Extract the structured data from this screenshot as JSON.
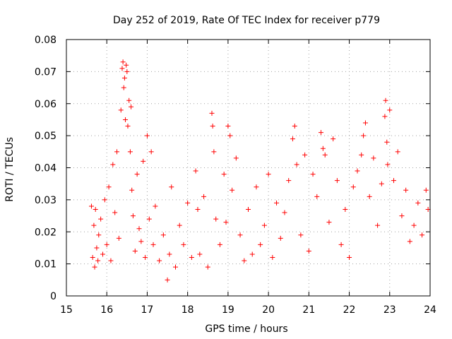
{
  "chart_data": {
    "type": "scatter",
    "title": "Day 252 of 2019, Rate Of TEC Index for receiver p779",
    "xlabel": "GPS time / hours",
    "ylabel": "ROTI / TECUs",
    "xlim": [
      15,
      24
    ],
    "ylim": [
      0,
      0.08
    ],
    "xticks": [
      "15",
      "16",
      "17",
      "18",
      "19",
      "20",
      "21",
      "22",
      "23",
      "24"
    ],
    "yticks": [
      "0",
      "0.01",
      "0.02",
      "0.03",
      "0.04",
      "0.05",
      "0.06",
      "0.07",
      "0.08"
    ],
    "grid": true,
    "marker": "plus",
    "color": "#ff0000",
    "series": [
      {
        "name": "ROTI",
        "x": [
          15.62,
          15.65,
          15.68,
          15.7,
          15.72,
          15.75,
          15.78,
          15.8,
          15.85,
          15.9,
          15.95,
          16.0,
          16.05,
          16.1,
          16.15,
          16.2,
          16.25,
          16.3,
          16.35,
          16.38,
          16.4,
          16.42,
          16.44,
          16.46,
          16.48,
          16.5,
          16.52,
          16.55,
          16.58,
          16.6,
          16.62,
          16.65,
          16.7,
          16.75,
          16.8,
          16.85,
          16.9,
          16.95,
          17.0,
          17.05,
          17.1,
          17.15,
          17.2,
          17.3,
          17.4,
          17.5,
          17.55,
          17.6,
          17.7,
          17.8,
          17.9,
          18.0,
          18.1,
          18.2,
          18.25,
          18.3,
          18.4,
          18.5,
          18.6,
          18.62,
          18.65,
          18.7,
          18.8,
          18.9,
          18.95,
          19.0,
          19.05,
          19.1,
          19.2,
          19.3,
          19.4,
          19.5,
          19.6,
          19.7,
          19.8,
          19.9,
          20.0,
          20.1,
          20.2,
          20.3,
          20.4,
          20.5,
          20.6,
          20.65,
          20.7,
          20.8,
          20.9,
          21.0,
          21.1,
          21.2,
          21.3,
          21.35,
          21.4,
          21.5,
          21.6,
          21.7,
          21.8,
          21.9,
          22.0,
          22.1,
          22.2,
          22.3,
          22.35,
          22.4,
          22.5,
          22.6,
          22.7,
          22.8,
          22.88,
          22.9,
          22.93,
          22.95,
          23.0,
          23.1,
          23.2,
          23.3,
          23.4,
          23.5,
          23.6,
          23.7,
          23.8,
          23.9,
          23.95
        ],
        "y": [
          0.028,
          0.012,
          0.022,
          0.009,
          0.027,
          0.015,
          0.011,
          0.019,
          0.024,
          0.013,
          0.03,
          0.016,
          0.034,
          0.011,
          0.041,
          0.026,
          0.045,
          0.018,
          0.058,
          0.071,
          0.073,
          0.065,
          0.068,
          0.055,
          0.072,
          0.07,
          0.053,
          0.061,
          0.045,
          0.059,
          0.033,
          0.025,
          0.014,
          0.038,
          0.021,
          0.017,
          0.042,
          0.012,
          0.05,
          0.024,
          0.045,
          0.016,
          0.028,
          0.011,
          0.019,
          0.005,
          0.013,
          0.034,
          0.009,
          0.022,
          0.016,
          0.029,
          0.012,
          0.039,
          0.027,
          0.013,
          0.031,
          0.009,
          0.057,
          0.053,
          0.045,
          0.024,
          0.016,
          0.038,
          0.023,
          0.053,
          0.05,
          0.033,
          0.043,
          0.019,
          0.011,
          0.027,
          0.013,
          0.034,
          0.016,
          0.022,
          0.038,
          0.012,
          0.029,
          0.018,
          0.026,
          0.036,
          0.049,
          0.053,
          0.041,
          0.019,
          0.044,
          0.014,
          0.038,
          0.031,
          0.051,
          0.046,
          0.044,
          0.023,
          0.049,
          0.036,
          0.016,
          0.027,
          0.012,
          0.034,
          0.039,
          0.044,
          0.05,
          0.054,
          0.031,
          0.043,
          0.022,
          0.035,
          0.056,
          0.061,
          0.048,
          0.041,
          0.058,
          0.036,
          0.045,
          0.025,
          0.033,
          0.017,
          0.022,
          0.029,
          0.019,
          0.033,
          0.027
        ]
      }
    ]
  }
}
